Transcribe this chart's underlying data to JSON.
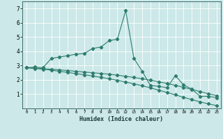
{
  "xlabel": "Humidex (Indice chaleur)",
  "bg_color": "#cce8e8",
  "grid_color": "#ffffff",
  "line_color": "#2e7d6e",
  "xlim": [
    -0.5,
    23.5
  ],
  "ylim": [
    0,
    7.5
  ],
  "xticks": [
    0,
    1,
    2,
    3,
    4,
    5,
    6,
    7,
    8,
    9,
    10,
    11,
    12,
    13,
    14,
    15,
    16,
    17,
    18,
    19,
    20,
    21,
    22,
    23
  ],
  "yticks": [
    1,
    2,
    3,
    4,
    5,
    6,
    7
  ],
  "series1_x": [
    0,
    1,
    2,
    3,
    4,
    5,
    6,
    7,
    8,
    9,
    10,
    11,
    12,
    13,
    14,
    15,
    16,
    17,
    18,
    19,
    20,
    21,
    22,
    23
  ],
  "series1_y": [
    2.85,
    2.9,
    2.85,
    3.5,
    3.6,
    3.7,
    3.8,
    3.85,
    4.2,
    4.3,
    4.75,
    4.85,
    6.85,
    3.5,
    2.6,
    1.6,
    1.55,
    1.45,
    2.3,
    1.65,
    1.35,
    0.85,
    0.85,
    0.75
  ],
  "series2_x": [
    0,
    1,
    2,
    3,
    4,
    5,
    6,
    7,
    8,
    9,
    10,
    11,
    12,
    13,
    14,
    15,
    16,
    17,
    18,
    19,
    20,
    21,
    22,
    23
  ],
  "series2_y": [
    2.85,
    2.82,
    2.78,
    2.75,
    2.7,
    2.65,
    2.6,
    2.55,
    2.5,
    2.45,
    2.4,
    2.33,
    2.25,
    2.17,
    2.08,
    1.98,
    1.87,
    1.75,
    1.62,
    1.48,
    1.33,
    1.18,
    1.03,
    0.9
  ],
  "series3_x": [
    0,
    1,
    2,
    3,
    4,
    5,
    6,
    7,
    8,
    9,
    10,
    11,
    12,
    13,
    14,
    15,
    16,
    17,
    18,
    19,
    20,
    21,
    22,
    23
  ],
  "series3_y": [
    2.85,
    2.8,
    2.75,
    2.68,
    2.6,
    2.52,
    2.44,
    2.36,
    2.27,
    2.18,
    2.08,
    1.97,
    1.85,
    1.72,
    1.59,
    1.44,
    1.28,
    1.12,
    0.95,
    0.78,
    0.62,
    0.46,
    0.32,
    0.2
  ]
}
